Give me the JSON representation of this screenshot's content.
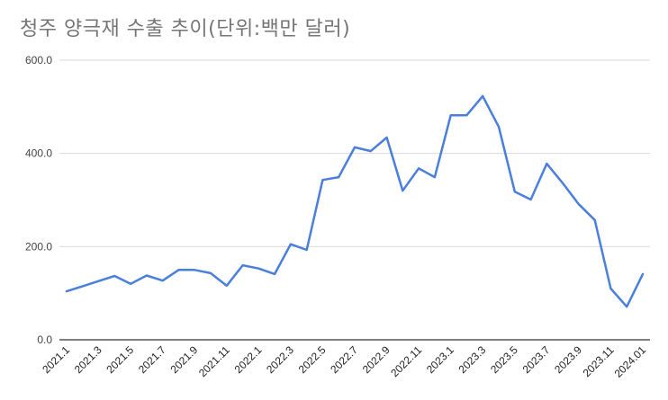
{
  "chart_data": {
    "type": "line",
    "title": "청주 양극재 수출 추이(단위:백만 달러)",
    "xlabel": "",
    "ylabel": "",
    "ylim": [
      0,
      600
    ],
    "yticks": [
      "0.0",
      "200.0",
      "400.0",
      "600.0"
    ],
    "grid": true,
    "legend": null,
    "line_color": "#4a7fdb",
    "x": [
      "2021.1",
      "2021.2",
      "2021.3",
      "2021.4",
      "2021.5",
      "2021.6",
      "2021.7",
      "2021.8",
      "2021.9",
      "2021.10",
      "2021.11",
      "2021.12",
      "2022.1",
      "2022.2",
      "2022.3",
      "2022.4",
      "2022.5",
      "2022.6",
      "2022.7",
      "2022.8",
      "2022.9",
      "2022.10",
      "2022.11",
      "2022.12",
      "2023.1",
      "2023.2",
      "2023.3",
      "2023.4",
      "2023.5",
      "2023.6",
      "2023.7",
      "2023.8",
      "2023.9",
      "2023.10",
      "2023.11",
      "2023.12",
      "2024.01"
    ],
    "xtick_labels": [
      "2021.1",
      "2021.3",
      "2021.5",
      "2021.7",
      "2021.9",
      "2021.11",
      "2022.1",
      "2022.3",
      "2022.5",
      "2022.7",
      "2022.9",
      "2022.11",
      "2023.1",
      "2023.3",
      "2023.5",
      "2023.7",
      "2023.9",
      "2023.11",
      "2024.01"
    ],
    "series": [
      {
        "name": "양극재 수출",
        "values": [
          104,
          115,
          126,
          137,
          120,
          138,
          127,
          150,
          150,
          143,
          116,
          160,
          153,
          141,
          205,
          193,
          343,
          349,
          413,
          405,
          434,
          320,
          368,
          349,
          482,
          482,
          523,
          457,
          318,
          301,
          378,
          336,
          291,
          257,
          110,
          71,
          141
        ]
      }
    ]
  }
}
